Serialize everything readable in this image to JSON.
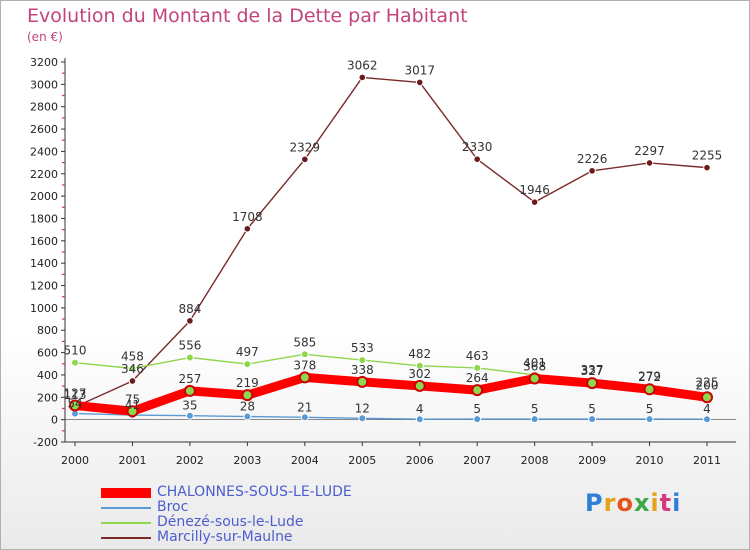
{
  "title": "Evolution du Montant de la Dette par Habitant",
  "subtitle": "(en €)",
  "brand": "Proxiti",
  "chart_data": {
    "type": "line",
    "title": "Evolution du Montant de la Dette par Habitant",
    "subtitle": "(en €)",
    "x": [
      "2000",
      "2001",
      "2002",
      "2003",
      "2004",
      "2005",
      "2006",
      "2007",
      "2008",
      "2009",
      "2010",
      "2011"
    ],
    "ylim": [
      -200,
      3200
    ],
    "yticks": [
      -200,
      0,
      200,
      400,
      600,
      800,
      1000,
      1200,
      1400,
      1600,
      1800,
      2000,
      2200,
      2400,
      2600,
      2800,
      3000,
      3200
    ],
    "grid": false,
    "legend_position": "bottom-left",
    "series": [
      {
        "name": "CHALONNES-SOUS-LE-LUDE",
        "color": "#ff0000",
        "values": [
          127,
          75,
          257,
          219,
          378,
          338,
          302,
          264,
          368,
          327,
          272,
          200
        ]
      },
      {
        "name": "Broc",
        "color": "#5b9bd5",
        "values": [
          54,
          41,
          35,
          28,
          21,
          12,
          4,
          5,
          5,
          5,
          5,
          4
        ]
      },
      {
        "name": "Dénezé-sous-le-Lude",
        "color": "#8fd64f",
        "values": [
          510,
          458,
          556,
          497,
          585,
          533,
          482,
          463,
          401,
          337,
          279,
          225
        ]
      },
      {
        "name": "Marcilly-sur-Maulne",
        "color": "#7a2a2a",
        "values": [
          113,
          346,
          884,
          1708,
          2329,
          3062,
          3017,
          2330,
          1946,
          2226,
          2297,
          2255
        ]
      }
    ],
    "labels_shown": [
      [
        127,
        75,
        257,
        219,
        378,
        338,
        302,
        264,
        368,
        327,
        272,
        200
      ],
      [
        54,
        41,
        35,
        28,
        21,
        12,
        4,
        5,
        5,
        5,
        5,
        4
      ],
      [
        510,
        458,
        556,
        497,
        585,
        533,
        482,
        463,
        401,
        337,
        279,
        225
      ],
      [
        113,
        346,
        884,
        1708,
        2329,
        3062,
        3017,
        2330,
        1946,
        2226,
        2297,
        2255
      ]
    ]
  }
}
